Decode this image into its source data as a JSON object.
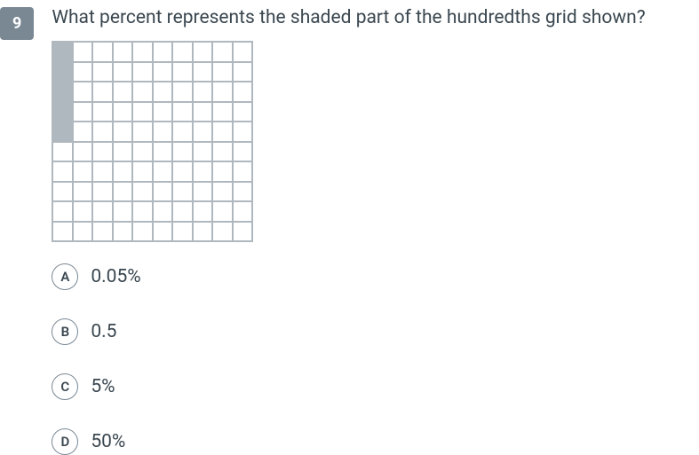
{
  "question": {
    "number": "9",
    "text": "What percent represents the shaded part of the hundredths grid shown?"
  },
  "grid": {
    "rows": 10,
    "cols": 10,
    "cell_size": 22.5,
    "border_color": "#b0b8bf",
    "shaded_color": "#b0b8bf",
    "background_color": "#ffffff",
    "shaded_cells": [
      {
        "row": 0,
        "col": 0
      },
      {
        "row": 1,
        "col": 0
      },
      {
        "row": 2,
        "col": 0
      },
      {
        "row": 3,
        "col": 0
      },
      {
        "row": 4,
        "col": 0
      }
    ]
  },
  "options": [
    {
      "letter": "A",
      "text": "0.05%"
    },
    {
      "letter": "B",
      "text": "0.5"
    },
    {
      "letter": "C",
      "text": "5%"
    },
    {
      "letter": "D",
      "text": "50%"
    }
  ],
  "colors": {
    "number_badge_bg": "#7a8894",
    "number_badge_text": "#ffffff",
    "text": "#3a4750",
    "option_border": "#7a8894"
  },
  "typography": {
    "question_fontsize": 21,
    "option_fontsize": 21,
    "number_fontsize": 18,
    "letter_fontsize": 15
  }
}
